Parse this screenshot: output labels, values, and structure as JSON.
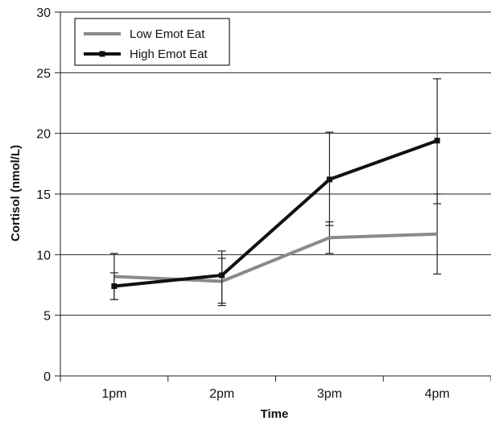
{
  "chart_data": {
    "type": "line",
    "title": "",
    "xlabel": "Time",
    "ylabel": "Cortisol (nmol/L)",
    "categories": [
      "1pm",
      "2pm",
      "3pm",
      "4pm"
    ],
    "ylim": [
      0,
      30
    ],
    "yticks": [
      0,
      5,
      10,
      15,
      20,
      25,
      30
    ],
    "grid": "horizontal",
    "legend": "top-left",
    "series": [
      {
        "name": "Low Emot Eat",
        "values": [
          8.2,
          7.8,
          11.4,
          11.7
        ],
        "error_low": [
          6.3,
          6.0,
          10.1,
          8.4
        ],
        "error_high": [
          10.1,
          9.7,
          12.7,
          15.0
        ],
        "color": "#8a8a8a",
        "marker": "none"
      },
      {
        "name": "High Emot Eat",
        "values": [
          7.4,
          8.3,
          16.2,
          19.4
        ],
        "error_low": [
          6.3,
          5.8,
          12.4,
          14.2
        ],
        "error_high": [
          8.5,
          10.3,
          20.1,
          24.5
        ],
        "color": "#111111",
        "marker": "square"
      }
    ]
  }
}
